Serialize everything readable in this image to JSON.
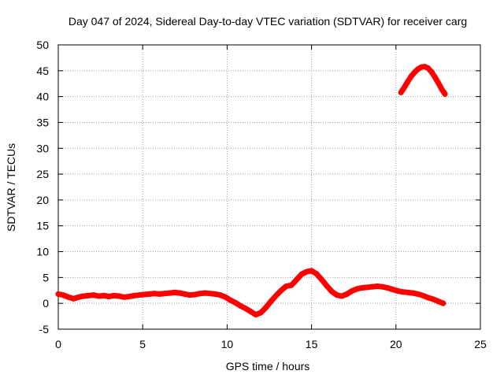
{
  "chart_data": {
    "type": "scatter",
    "title": "Day 047 of 2024, Sidereal Day-to-day VTEC variation (SDTVAR) for receiver carg",
    "xlabel": "GPS time / hours",
    "ylabel": "SDTVAR / TECUs",
    "xlim": [
      0,
      25
    ],
    "ylim": [
      -5,
      50
    ],
    "xticks": [
      0,
      5,
      10,
      15,
      20,
      25
    ],
    "yticks": [
      -5,
      0,
      5,
      10,
      15,
      20,
      25,
      30,
      35,
      40,
      45,
      50
    ],
    "grid": true,
    "legend": "none",
    "series": [
      {
        "name": "SDTVAR",
        "color": "#ff0000",
        "x": [
          0,
          0.3,
          0.6,
          0.9,
          1.2,
          1.5,
          1.8,
          2.1,
          2.4,
          2.7,
          3.0,
          3.3,
          3.6,
          3.9,
          4.2,
          4.5,
          4.8,
          5.1,
          5.4,
          5.7,
          6.0,
          6.3,
          6.6,
          6.9,
          7.2,
          7.5,
          7.8,
          8.1,
          8.4,
          8.7,
          9.0,
          9.3,
          9.6,
          9.9,
          10.2,
          10.5,
          10.8,
          11.1,
          11.4,
          11.7,
          12.0,
          12.3,
          12.6,
          12.9,
          13.2,
          13.5,
          13.8,
          14.1,
          14.4,
          14.7,
          15.0,
          15.3,
          15.6,
          15.9,
          16.2,
          16.5,
          16.8,
          17.1,
          17.4,
          17.7,
          18.0,
          18.3,
          18.6,
          18.9,
          19.2,
          19.5,
          19.8,
          20.1,
          20.4,
          20.7,
          21.0,
          21.3,
          21.6,
          21.9,
          22.2,
          22.5,
          22.8
        ],
        "y": [
          1.8,
          1.6,
          1.2,
          0.9,
          1.2,
          1.4,
          1.5,
          1.6,
          1.4,
          1.5,
          1.3,
          1.5,
          1.4,
          1.2,
          1.3,
          1.5,
          1.6,
          1.7,
          1.8,
          1.9,
          1.8,
          1.9,
          2.0,
          2.1,
          2.0,
          1.8,
          1.6,
          1.7,
          1.9,
          2.0,
          1.9,
          1.8,
          1.6,
          1.2,
          0.6,
          0.1,
          -0.5,
          -1.0,
          -1.6,
          -2.2,
          -1.8,
          -0.8,
          0.4,
          1.5,
          2.5,
          3.3,
          3.5,
          4.5,
          5.6,
          6.1,
          6.3,
          5.7,
          4.6,
          3.4,
          2.3,
          1.6,
          1.4,
          1.8,
          2.4,
          2.8,
          3.0,
          3.1,
          3.2,
          3.3,
          3.2,
          3.0,
          2.7,
          2.4,
          2.2,
          2.1,
          2.0,
          1.8,
          1.5,
          1.1,
          0.8,
          0.4,
          0.0
        ]
      },
      {
        "name": "SDTVAR",
        "color": "#ff0000",
        "x": [
          20.3,
          20.5,
          20.7,
          20.9,
          21.1,
          21.3,
          21.5,
          21.7,
          21.9,
          22.1,
          22.3,
          22.5,
          22.7,
          22.9
        ],
        "y": [
          40.8,
          41.8,
          42.9,
          43.9,
          44.7,
          45.3,
          45.7,
          45.8,
          45.5,
          44.8,
          43.8,
          42.7,
          41.5,
          40.5
        ]
      }
    ]
  }
}
